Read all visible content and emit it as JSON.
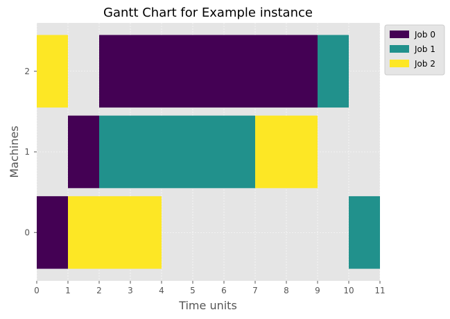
{
  "chart_data": {
    "type": "gantt",
    "title": "Gantt Chart for Example instance",
    "xlabel": "Time units",
    "ylabel": "Machines",
    "xlim": [
      0,
      11
    ],
    "x_ticks": [
      "0",
      "1",
      "2",
      "3",
      "4",
      "5",
      "6",
      "7",
      "8",
      "9",
      "10",
      "11"
    ],
    "y_categories": [
      "0",
      "1",
      "2"
    ],
    "grid": true,
    "legend_position": "upper-right-outside",
    "series": [
      {
        "name": "Job 0",
        "color": "#440154"
      },
      {
        "name": "Job 1",
        "color": "#21918c"
      },
      {
        "name": "Job 2",
        "color": "#fde725"
      }
    ],
    "tasks": [
      {
        "machine": 0,
        "job": 0,
        "start": 0,
        "end": 1
      },
      {
        "machine": 0,
        "job": 2,
        "start": 1,
        "end": 4
      },
      {
        "machine": 0,
        "job": 1,
        "start": 10,
        "end": 11
      },
      {
        "machine": 1,
        "job": 0,
        "start": 1,
        "end": 2
      },
      {
        "machine": 1,
        "job": 1,
        "start": 2,
        "end": 7
      },
      {
        "machine": 1,
        "job": 2,
        "start": 7,
        "end": 9
      },
      {
        "machine": 2,
        "job": 2,
        "start": 0,
        "end": 1
      },
      {
        "machine": 2,
        "job": 0,
        "start": 2,
        "end": 9
      },
      {
        "machine": 2,
        "job": 1,
        "start": 9,
        "end": 10
      }
    ]
  }
}
